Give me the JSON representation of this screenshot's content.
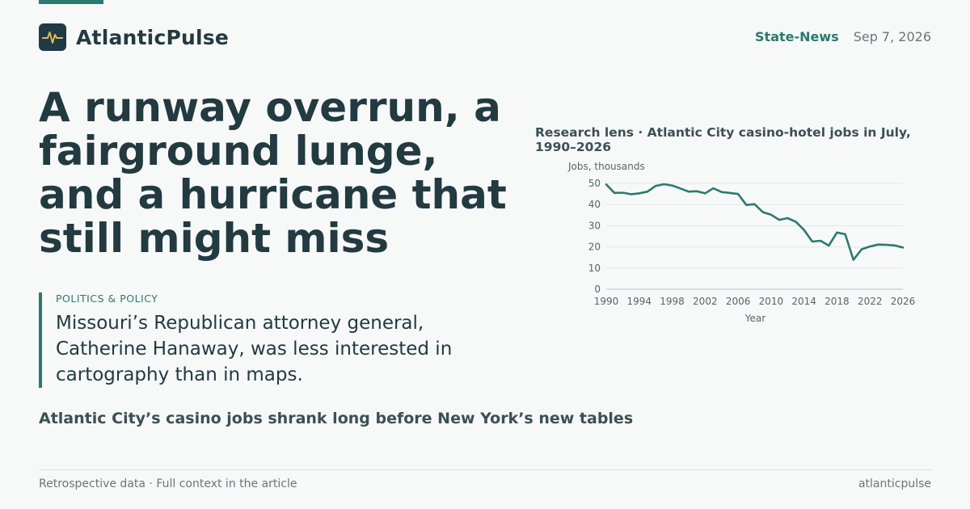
{
  "brand": {
    "name": "AtlanticPulse",
    "logo_icon": "pulse-icon"
  },
  "meta": {
    "section": "State-News",
    "date": "Sep 7, 2026"
  },
  "headline": "A runway overrun, a fairground lunge, and a hurricane that still might miss",
  "dek": {
    "kicker": "POLITICS & POLICY",
    "text": "Missouri’s Republican attorney general, Catherine Hanaway, was less interested in cartography than in maps."
  },
  "subhead": "Atlantic City’s casino jobs shrank long before New York’s new tables",
  "footer": {
    "left": "Retrospective data · Full context in the article",
    "right": "atlanticpulse"
  },
  "colors": {
    "accent": "#2a7a70",
    "text": "#223a40",
    "background": "#f7f8f8"
  },
  "chart_data": {
    "type": "line",
    "title": "Research lens · Atlantic City casino-hotel jobs in July, 1990–2026",
    "xlabel": "Year",
    "ylabel": "Jobs, thousands",
    "xlim": [
      1990,
      2026
    ],
    "ylim": [
      0,
      50
    ],
    "xticks": [
      1990,
      1994,
      1998,
      2002,
      2006,
      2010,
      2014,
      2018,
      2022,
      2026
    ],
    "yticks": [
      0,
      10,
      20,
      30,
      40,
      50
    ],
    "grid": true,
    "series": [
      {
        "x": [
          1990,
          1991,
          1992,
          1993,
          1994,
          1995,
          1996,
          1997,
          1998,
          1999,
          2000,
          2001,
          2002,
          2003,
          2004,
          2005,
          2006,
          2007,
          2008,
          2009,
          2010,
          2011,
          2012,
          2013,
          2014,
          2015,
          2016,
          2017,
          2018,
          2019,
          2020,
          2021,
          2022,
          2023,
          2024,
          2025,
          2026
        ],
        "y": [
          49.5,
          45.5,
          45.6,
          44.9,
          45.3,
          46.1,
          48.8,
          49.6,
          49.0,
          47.6,
          46.1,
          46.3,
          45.3,
          47.7,
          45.9,
          45.5,
          45.0,
          39.8,
          40.2,
          36.4,
          35.2,
          32.8,
          33.6,
          31.9,
          28.0,
          22.5,
          22.9,
          20.6,
          26.8,
          26.0,
          13.9,
          18.9,
          20.2,
          21.1,
          21.0,
          20.7,
          19.7
        ]
      }
    ]
  }
}
